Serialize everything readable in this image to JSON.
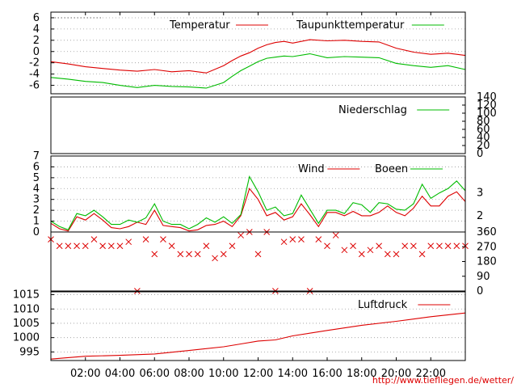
{
  "source_url": "http://www.tiefliegen.de/wetter/",
  "time_labels": [
    "02:00",
    "04:00",
    "06:00",
    "08:00",
    "10:00",
    "12:00",
    "14:00",
    "16:00",
    "18:00",
    "20:00",
    "22:00"
  ],
  "chart_data": [
    {
      "type": "line",
      "panel": "temperature",
      "ylim": [
        -7.5,
        7
      ],
      "yticks": [
        "6",
        "4",
        "2",
        "0",
        "-2",
        "-4",
        "-6"
      ],
      "x_hours": [
        0,
        1,
        2,
        3,
        4,
        5,
        6,
        7,
        8,
        9,
        10,
        10.5,
        11,
        11.5,
        12,
        12.5,
        13,
        13.5,
        14,
        15,
        16,
        17,
        18,
        19,
        20,
        21,
        22,
        23,
        24
      ],
      "series": [
        {
          "name": "Temperatur",
          "color": "#dd0000",
          "values": [
            -1.8,
            -2.2,
            -2.7,
            -3.0,
            -3.3,
            -3.5,
            -3.2,
            -3.6,
            -3.4,
            -3.8,
            -2.5,
            -1.6,
            -0.8,
            -0.2,
            0.6,
            1.2,
            1.6,
            1.8,
            1.5,
            2.1,
            1.9,
            2.0,
            1.8,
            1.7,
            0.6,
            -0.1,
            -0.5,
            -0.3,
            -0.7
          ]
        },
        {
          "name": "Taupunkttemperatur",
          "color": "#00bb00",
          "values": [
            -4.6,
            -4.9,
            -5.3,
            -5.5,
            -6.0,
            -6.4,
            -6.0,
            -6.2,
            -6.3,
            -6.5,
            -5.5,
            -4.4,
            -3.4,
            -2.6,
            -1.8,
            -1.2,
            -1.0,
            -0.8,
            -0.9,
            -0.4,
            -1.1,
            -0.9,
            -1.0,
            -1.1,
            -2.1,
            -2.5,
            -2.8,
            -2.5,
            -3.2
          ]
        }
      ]
    },
    {
      "type": "line",
      "panel": "precipitation",
      "ylim": [
        0,
        140
      ],
      "yticks": [
        "140",
        "120",
        "100",
        "80",
        "60",
        "40",
        "20",
        "0"
      ],
      "series": [
        {
          "name": "Niederschlag",
          "color": "#00bb00",
          "values": [
            0,
            0
          ]
        }
      ]
    },
    {
      "type": "line",
      "panel": "wind",
      "ylim": [
        0,
        7
      ],
      "yticks": [
        "7",
        "6",
        "5",
        "4",
        "3",
        "2",
        "1",
        "0"
      ],
      "right_ticks": [
        "3",
        "2"
      ],
      "x_hours": [
        0,
        0.5,
        1,
        1.5,
        2,
        2.5,
        3,
        3.5,
        4,
        4.5,
        5,
        5.5,
        6,
        6.5,
        7,
        7.5,
        8,
        8.5,
        9,
        9.5,
        10,
        10.5,
        11,
        11.5,
        12,
        12.5,
        13,
        13.5,
        14,
        14.5,
        15,
        15.5,
        16,
        16.5,
        17,
        17.5,
        18,
        18.5,
        19,
        19.5,
        20,
        20.5,
        21,
        21.5,
        22,
        22.5,
        23,
        23.5,
        24
      ],
      "series": [
        {
          "name": "Wind",
          "color": "#dd0000",
          "values": [
            0.8,
            0.3,
            0.1,
            1.4,
            1.1,
            1.7,
            1.1,
            0.4,
            0.3,
            0.5,
            0.9,
            0.7,
            2.0,
            0.6,
            0.5,
            0.4,
            0.1,
            0.2,
            0.6,
            0.7,
            1.0,
            0.5,
            1.5,
            4.0,
            3.0,
            1.5,
            1.8,
            1.1,
            1.4,
            2.6,
            1.6,
            0.5,
            1.8,
            1.8,
            1.5,
            1.9,
            1.5,
            1.5,
            1.8,
            2.4,
            1.8,
            1.5,
            2.2,
            3.3,
            2.4,
            2.4,
            3.3,
            3.7,
            2.8
          ]
        },
        {
          "name": "Boeen",
          "color": "#00bb00",
          "values": [
            1.0,
            0.5,
            0.2,
            1.7,
            1.5,
            2.0,
            1.4,
            0.7,
            0.7,
            1.1,
            0.9,
            1.3,
            2.6,
            1.0,
            0.7,
            0.7,
            0.3,
            0.7,
            1.3,
            0.9,
            1.4,
            0.8,
            1.6,
            5.1,
            3.7,
            2.0,
            2.3,
            1.5,
            1.7,
            3.4,
            2.1,
            0.8,
            2.0,
            2.0,
            1.7,
            2.7,
            2.5,
            1.8,
            2.7,
            2.6,
            2.1,
            2.0,
            2.6,
            4.4,
            3.1,
            3.6,
            4.0,
            4.7,
            3.8
          ]
        }
      ]
    },
    {
      "type": "scatter",
      "panel": "wind_direction",
      "ylim": [
        0,
        360
      ],
      "right_ticks": [
        "360",
        "270",
        "180",
        "90",
        "0"
      ],
      "marker_color": "#dd0000",
      "points_x": [
        0,
        0.5,
        1,
        1.5,
        2,
        2.5,
        3,
        3.5,
        4,
        4.5,
        5,
        5.5,
        6,
        6.5,
        7,
        7.5,
        8,
        8.5,
        9,
        9.5,
        10,
        10.5,
        11,
        11.5,
        12,
        12.5,
        13,
        13.5,
        14,
        14.5,
        15,
        15.5,
        16,
        16.5,
        17,
        17.5,
        18,
        18.5,
        19,
        19.5,
        20,
        20.5,
        21,
        21.5,
        22,
        22.5,
        23,
        23.5,
        24
      ],
      "points_y": [
        315,
        275,
        275,
        275,
        275,
        315,
        275,
        275,
        275,
        300,
        0,
        315,
        225,
        315,
        275,
        225,
        225,
        225,
        275,
        200,
        225,
        275,
        340,
        360,
        225,
        360,
        0,
        300,
        315,
        315,
        0,
        315,
        275,
        340,
        250,
        275,
        225,
        250,
        275,
        225,
        225,
        275,
        275,
        225,
        275,
        275,
        275,
        275,
        275
      ]
    },
    {
      "type": "line",
      "panel": "pressure",
      "ylim": [
        992,
        1016
      ],
      "yticks": [
        "1015",
        "1010",
        "1005",
        "1000",
        "995"
      ],
      "x_hours": [
        0,
        2,
        4,
        6,
        8,
        10,
        11,
        12,
        13,
        14,
        16,
        18,
        20,
        22,
        24
      ],
      "series": [
        {
          "name": "Luftdruck",
          "color": "#dd0000",
          "values": [
            992.5,
            993.5,
            993.8,
            994.3,
            995.5,
            996.8,
            997.8,
            998.8,
            999.2,
            1000.6,
            1002.5,
            1004.3,
            1005.7,
            1007.3,
            1008.6
          ]
        }
      ]
    }
  ]
}
